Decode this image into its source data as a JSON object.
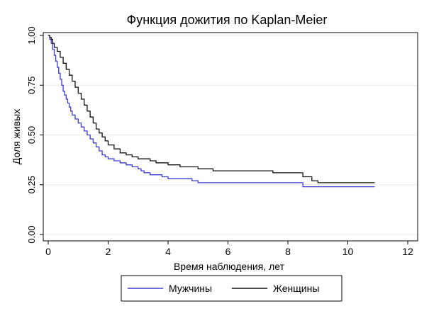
{
  "chart_data": {
    "type": "line",
    "step": true,
    "title": "Функция дожития по Kaplan-Meier",
    "xlabel": "Время наблюдения, лет",
    "ylabel": "Доля живых",
    "xlim": [
      0,
      12
    ],
    "ylim": [
      0,
      1
    ],
    "xticks": [
      0,
      2,
      4,
      6,
      8,
      10,
      12
    ],
    "yticks": [
      0,
      0.25,
      0.5,
      0.75,
      1
    ],
    "ytick_labels": [
      "0.00",
      "0.25",
      "0.50",
      "0.75",
      "1.00"
    ],
    "grid": true,
    "legend_position": "bottom",
    "series": [
      {
        "name": "Мужчины",
        "color": "#3a3ad6",
        "x": [
          0,
          0.05,
          0.1,
          0.15,
          0.2,
          0.25,
          0.3,
          0.35,
          0.4,
          0.45,
          0.5,
          0.55,
          0.6,
          0.65,
          0.7,
          0.75,
          0.8,
          0.9,
          1.0,
          1.1,
          1.2,
          1.3,
          1.4,
          1.5,
          1.6,
          1.7,
          1.8,
          1.9,
          2.0,
          2.2,
          2.4,
          2.6,
          2.8,
          3.0,
          3.1,
          3.2,
          3.4,
          3.6,
          3.8,
          4.0,
          4.4,
          4.8,
          5.0,
          5.5,
          6.0,
          7.0,
          8.0,
          8.5,
          9.0,
          10.0,
          10.9
        ],
        "y": [
          1.0,
          0.98,
          0.96,
          0.93,
          0.9,
          0.87,
          0.84,
          0.81,
          0.78,
          0.75,
          0.72,
          0.7,
          0.68,
          0.66,
          0.64,
          0.62,
          0.6,
          0.58,
          0.56,
          0.54,
          0.52,
          0.5,
          0.48,
          0.46,
          0.44,
          0.42,
          0.4,
          0.39,
          0.38,
          0.37,
          0.36,
          0.35,
          0.34,
          0.33,
          0.32,
          0.31,
          0.3,
          0.3,
          0.29,
          0.28,
          0.28,
          0.27,
          0.26,
          0.26,
          0.26,
          0.26,
          0.26,
          0.24,
          0.24,
          0.24,
          0.24
        ]
      },
      {
        "name": "Женщины",
        "color": "#111111",
        "x": [
          0,
          0.05,
          0.1,
          0.15,
          0.2,
          0.3,
          0.4,
          0.5,
          0.6,
          0.7,
          0.8,
          0.9,
          1.0,
          1.1,
          1.2,
          1.3,
          1.4,
          1.5,
          1.6,
          1.7,
          1.8,
          1.9,
          2.0,
          2.2,
          2.4,
          2.6,
          2.8,
          3.0,
          3.4,
          3.6,
          4.0,
          4.4,
          5.0,
          5.5,
          6.0,
          7.0,
          7.5,
          8.0,
          8.5,
          8.8,
          9.0,
          10.0,
          10.9
        ],
        "y": [
          1.0,
          0.99,
          0.98,
          0.96,
          0.94,
          0.92,
          0.89,
          0.86,
          0.83,
          0.8,
          0.77,
          0.74,
          0.71,
          0.68,
          0.65,
          0.62,
          0.59,
          0.56,
          0.53,
          0.51,
          0.49,
          0.47,
          0.45,
          0.43,
          0.41,
          0.4,
          0.39,
          0.38,
          0.37,
          0.36,
          0.35,
          0.34,
          0.33,
          0.32,
          0.32,
          0.32,
          0.31,
          0.31,
          0.29,
          0.27,
          0.26,
          0.26,
          0.26
        ]
      }
    ]
  }
}
